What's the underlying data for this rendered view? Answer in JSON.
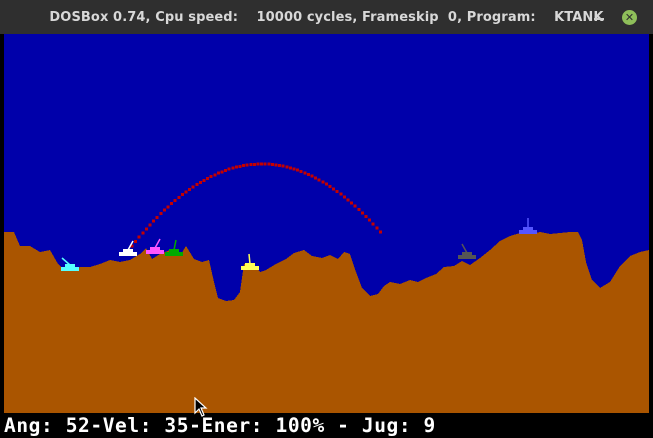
{
  "window": {
    "title": "DOSBox 0.74, Cpu speed:    10000 cycles, Frameskip  0, Program:    KTANK",
    "close_glyph": "✕"
  },
  "game": {
    "sky_color": "#0000aa",
    "ground_color": "#aa5500",
    "trajectory_color": "#c40000",
    "tanks": [
      {
        "name": "cyan-tank",
        "color": "#55ffff"
      },
      {
        "name": "white-tank",
        "color": "#ffffff"
      },
      {
        "name": "magenta-tank",
        "color": "#ff55ff"
      },
      {
        "name": "green-tank",
        "color": "#00aa00"
      },
      {
        "name": "yellow-tank",
        "color": "#ffff55"
      },
      {
        "name": "gray-tank",
        "color": "#555555"
      },
      {
        "name": "blue-tank",
        "color": "#5555ff"
      }
    ]
  },
  "status": {
    "text": "Ang: 52-Vel: 35-Ener: 100% - Jug: 9",
    "angle": 52,
    "velocity": 35,
    "energy_percent": 100,
    "player": 9
  }
}
